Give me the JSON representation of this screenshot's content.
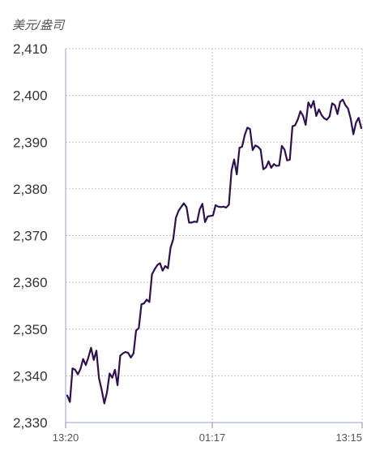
{
  "chart_data": {
    "type": "line",
    "unit_label": "美元/盎司",
    "title": "",
    "xlabel": "",
    "ylabel": "美元/盎司",
    "ylim": [
      2330,
      2410
    ],
    "yticks": [
      2330,
      2340,
      2350,
      2360,
      2370,
      2380,
      2390,
      2400,
      2410
    ],
    "ytick_labels": [
      "2,330",
      "2,340",
      "2,350",
      "2,360",
      "2,370",
      "2,380",
      "2,390",
      "2,400",
      "2,410"
    ],
    "xtick_labels": [
      "13:20",
      "01:17",
      "13:15"
    ],
    "grid": "horizontal dotted + vertical dotted at x ticks",
    "line_color": "#2e0f52",
    "series": [
      {
        "values": [
          2335.8,
          2334.4,
          2341.6,
          2341.3,
          2340.3,
          2341.5,
          2343.6,
          2342.3,
          2344.0,
          2346.0,
          2343.4,
          2345.4,
          2339.5,
          2337.0,
          2334.1,
          2336.5,
          2340.5,
          2339.6,
          2341.3,
          2338.0,
          2344.3,
          2344.8,
          2345.1,
          2344.9,
          2343.9,
          2344.8,
          2349.7,
          2350.2,
          2355.3,
          2355.5,
          2356.3,
          2355.8,
          2361.7,
          2362.8,
          2363.7,
          2364.1,
          2362.5,
          2363.5,
          2363.0,
          2367.4,
          2369.2,
          2373.8,
          2375.3,
          2376.1,
          2376.9,
          2376.1,
          2372.8,
          2372.8,
          2373.0,
          2372.9,
          2375.6,
          2376.8,
          2372.9,
          2374.1,
          2374.2,
          2374.3,
          2376.5,
          2376.2,
          2376.1,
          2376.2,
          2376.0,
          2376.6,
          2383.9,
          2386.3,
          2383.1,
          2388.8,
          2389.0,
          2391.5,
          2393.1,
          2392.8,
          2388.3,
          2389.3,
          2389.0,
          2388.4,
          2384.2,
          2384.6,
          2385.9,
          2384.5,
          2385.3,
          2384.9,
          2385.0,
          2389.2,
          2388.4,
          2386.1,
          2386.2,
          2393.4,
          2393.6,
          2394.8,
          2396.6,
          2395.6,
          2393.7,
          2398.5,
          2397.4,
          2398.8,
          2395.6,
          2397.0,
          2395.8,
          2395.1,
          2394.8,
          2395.5,
          2398.3,
          2397.9,
          2396.0,
          2398.6,
          2399.1,
          2397.9,
          2397.2,
          2395.0,
          2391.7,
          2394.2,
          2395.2,
          2393.0
        ]
      }
    ]
  }
}
